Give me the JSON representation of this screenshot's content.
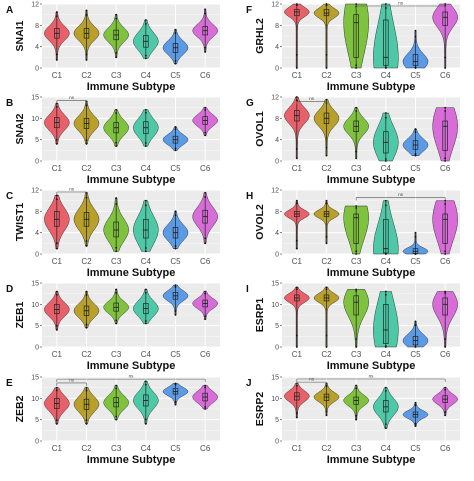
{
  "figure": {
    "x_label": "Immune Subtype",
    "categories": [
      "C1",
      "C2",
      "C3",
      "C4",
      "C5",
      "C6"
    ],
    "colors": [
      "#E8606A",
      "#B8A02A",
      "#7EC23E",
      "#4EC9A8",
      "#5B9BE6",
      "#D86CD8"
    ]
  },
  "chart_data": [
    {
      "type": "violin",
      "panel": "A",
      "ylabel": "SNAI1",
      "ylim": [
        0,
        12
      ],
      "yticks": [
        "0",
        "4",
        "8",
        "12"
      ],
      "categories": [
        "C1",
        "C2",
        "C3",
        "C4",
        "C5",
        "C6"
      ],
      "medians": [
        6.5,
        6.5,
        6.2,
        5.0,
        3.8,
        7.0
      ],
      "q1": [
        5.6,
        5.6,
        5.3,
        3.9,
        2.9,
        6.2
      ],
      "q3": [
        7.4,
        7.4,
        7.1,
        6.1,
        4.6,
        7.8
      ],
      "min": [
        1.5,
        1.5,
        2.0,
        1.8,
        0.8,
        3.0
      ],
      "max": [
        10.5,
        10.8,
        10.0,
        9.0,
        7.2,
        11.0
      ],
      "sig": []
    },
    {
      "type": "violin",
      "panel": "B",
      "ylabel": "SNAI2",
      "ylim": [
        0,
        15
      ],
      "yticks": [
        "0",
        "5",
        "10",
        "15"
      ],
      "categories": [
        "C1",
        "C2",
        "C3",
        "C4",
        "C5",
        "C6"
      ],
      "medians": [
        9.0,
        8.8,
        7.8,
        7.8,
        5.0,
        9.5
      ],
      "q1": [
        7.8,
        7.6,
        6.6,
        6.4,
        4.2,
        8.6
      ],
      "q3": [
        10.2,
        10.0,
        9.0,
        9.2,
        5.8,
        10.4
      ],
      "min": [
        4.0,
        4.0,
        3.5,
        3.5,
        2.5,
        6.0
      ],
      "max": [
        13.5,
        14.0,
        12.0,
        12.0,
        8.0,
        12.5
      ],
      "sig": [
        {
          "from": "C1",
          "to": "C2",
          "y": 14.2,
          "label": "ns"
        }
      ]
    },
    {
      "type": "violin",
      "panel": "C",
      "ylabel": "TWIST1",
      "ylim": [
        0,
        12
      ],
      "yticks": [
        "0",
        "4",
        "8",
        "12"
      ],
      "categories": [
        "C1",
        "C2",
        "C3",
        "C4",
        "C5",
        "C6"
      ],
      "medians": [
        6.5,
        6.5,
        4.5,
        4.5,
        4.0,
        7.0
      ],
      "q1": [
        5.2,
        5.2,
        3.2,
        3.0,
        3.0,
        5.8
      ],
      "q3": [
        8.0,
        7.8,
        6.0,
        6.5,
        5.0,
        8.2
      ],
      "min": [
        1.0,
        1.5,
        0.5,
        0.5,
        1.0,
        2.0
      ],
      "max": [
        11.0,
        11.5,
        10.5,
        10.0,
        8.0,
        11.5
      ],
      "sig": [
        {
          "from": "C1",
          "to": "C2",
          "y": 11.8,
          "label": "ns"
        }
      ]
    },
    {
      "type": "violin",
      "panel": "D",
      "ylabel": "ZEB1",
      "ylim": [
        0,
        15
      ],
      "yticks": [
        "0",
        "5",
        "10",
        "15"
      ],
      "categories": [
        "C1",
        "C2",
        "C3",
        "C4",
        "C5",
        "C6"
      ],
      "medians": [
        8.8,
        8.5,
        9.3,
        9.0,
        12.0,
        10.2
      ],
      "q1": [
        7.8,
        7.4,
        8.4,
        7.8,
        11.2,
        9.4
      ],
      "q3": [
        10.0,
        9.6,
        10.3,
        10.2,
        12.8,
        11.0
      ],
      "min": [
        4.0,
        4.5,
        5.5,
        5.5,
        7.5,
        6.5
      ],
      "max": [
        13.0,
        13.0,
        13.5,
        13.5,
        14.5,
        13.0
      ],
      "sig": []
    },
    {
      "type": "violin",
      "panel": "E",
      "ylabel": "ZEB2",
      "ylim": [
        0,
        15
      ],
      "yticks": [
        "0",
        "5",
        "10",
        "15"
      ],
      "categories": [
        "C1",
        "C2",
        "C3",
        "C4",
        "C5",
        "C6"
      ],
      "medians": [
        8.8,
        8.6,
        9.0,
        9.5,
        11.6,
        10.3
      ],
      "q1": [
        7.6,
        7.4,
        8.0,
        8.2,
        11.0,
        9.4
      ],
      "q3": [
        10.0,
        9.8,
        10.2,
        10.8,
        12.3,
        11.2
      ],
      "min": [
        4.0,
        4.0,
        5.0,
        4.0,
        8.5,
        7.5
      ],
      "max": [
        12.5,
        12.5,
        13.0,
        14.0,
        13.5,
        13.0
      ],
      "sig": [
        {
          "from": "C1",
          "to": "C2",
          "y": 13.6,
          "label": "ns"
        },
        {
          "from": "C1",
          "to": "C6",
          "y": 14.5,
          "label": "ns"
        }
      ]
    },
    {
      "type": "violin",
      "panel": "F",
      "ylabel": "GRHL2",
      "ylim": [
        0,
        12
      ],
      "yticks": [
        "0",
        "4",
        "8",
        "12"
      ],
      "categories": [
        "C1",
        "C2",
        "C3",
        "C4",
        "C5",
        "C6"
      ],
      "medians": [
        10.5,
        10.3,
        8.5,
        2.0,
        1.2,
        9.5
      ],
      "q1": [
        9.8,
        9.8,
        2.0,
        0.5,
        0.5,
        8.0
      ],
      "q3": [
        11.0,
        11.0,
        10.0,
        9.0,
        2.5,
        10.5
      ],
      "min": [
        0.0,
        0.0,
        0.0,
        0.0,
        0.0,
        0.0
      ],
      "max": [
        12.0,
        12.0,
        12.0,
        12.0,
        7.0,
        12.0
      ],
      "sig": [
        {
          "from": "C3",
          "to": "C6",
          "y": 12.5,
          "label": "ns"
        }
      ]
    },
    {
      "type": "violin",
      "panel": "G",
      "ylabel": "OVOL1",
      "ylim": [
        0,
        12
      ],
      "yticks": [
        "0",
        "4",
        "8",
        "12"
      ],
      "categories": [
        "C1",
        "C2",
        "C3",
        "C4",
        "C5",
        "C6"
      ],
      "medians": [
        8.5,
        8.0,
        6.5,
        3.5,
        3.0,
        6.5
      ],
      "q1": [
        7.5,
        7.0,
        5.5,
        1.5,
        2.2,
        2.0
      ],
      "q3": [
        9.5,
        9.0,
        7.5,
        5.5,
        3.8,
        7.5
      ],
      "min": [
        0.5,
        1.0,
        0.5,
        0.0,
        1.0,
        0.0
      ],
      "max": [
        12.0,
        11.5,
        10.0,
        9.0,
        6.0,
        10.0
      ],
      "sig": [
        {
          "from": "C1",
          "to": "C2",
          "y": 11.2,
          "label": "ns"
        }
      ]
    },
    {
      "type": "violin",
      "panel": "H",
      "ylabel": "OVOL2",
      "ylim": [
        0,
        12
      ],
      "yticks": [
        "0",
        "4",
        "8",
        "12"
      ],
      "categories": [
        "C1",
        "C2",
        "C3",
        "C4",
        "C5",
        "C6"
      ],
      "medians": [
        7.5,
        7.5,
        6.8,
        1.0,
        0.5,
        6.5
      ],
      "q1": [
        7.0,
        7.0,
        2.0,
        0.2,
        0.1,
        2.0
      ],
      "q3": [
        8.0,
        8.0,
        7.5,
        6.5,
        1.0,
        7.5
      ],
      "min": [
        1.0,
        2.0,
        0.0,
        0.0,
        0.0,
        0.0
      ],
      "max": [
        10.0,
        10.0,
        9.0,
        10.0,
        4.0,
        10.0
      ],
      "sig": [
        {
          "from": "C3",
          "to": "C6",
          "y": 10.6,
          "label": "ns"
        }
      ]
    },
    {
      "type": "violin",
      "panel": "I",
      "ylabel": "ESRP1",
      "ylim": [
        0,
        15
      ],
      "yticks": [
        "0",
        "5",
        "10",
        "15"
      ],
      "categories": [
        "C1",
        "C2",
        "C3",
        "C4",
        "C5",
        "C6"
      ],
      "medians": [
        11.5,
        11.5,
        10.5,
        4.0,
        1.5,
        10.0
      ],
      "q1": [
        10.8,
        10.8,
        7.5,
        0.8,
        0.5,
        7.5
      ],
      "q3": [
        12.2,
        12.2,
        12.0,
        10.0,
        2.5,
        11.5
      ],
      "min": [
        0.0,
        0.0,
        0.0,
        0.0,
        0.0,
        0.0
      ],
      "max": [
        14.0,
        14.0,
        13.5,
        13.0,
        6.0,
        13.0
      ],
      "sig": []
    },
    {
      "type": "violin",
      "panel": "J",
      "ylabel": "ESRP2",
      "ylim": [
        0,
        15
      ],
      "yticks": [
        "0",
        "5",
        "10",
        "15"
      ],
      "categories": [
        "C1",
        "C2",
        "C3",
        "C4",
        "C5",
        "C6"
      ],
      "medians": [
        10.5,
        10.3,
        9.5,
        8.0,
        6.2,
        9.8
      ],
      "q1": [
        9.6,
        9.5,
        8.6,
        6.8,
        5.6,
        9.0
      ],
      "q3": [
        11.3,
        11.0,
        10.3,
        9.5,
        6.8,
        10.6
      ],
      "min": [
        5.5,
        6.0,
        5.0,
        3.0,
        3.5,
        6.0
      ],
      "max": [
        13.5,
        13.5,
        13.0,
        12.5,
        9.0,
        12.5
      ],
      "sig": [
        {
          "from": "C1",
          "to": "C2",
          "y": 13.8,
          "label": "ns"
        },
        {
          "from": "C1",
          "to": "C6",
          "y": 14.6,
          "label": "ns"
        }
      ]
    }
  ]
}
